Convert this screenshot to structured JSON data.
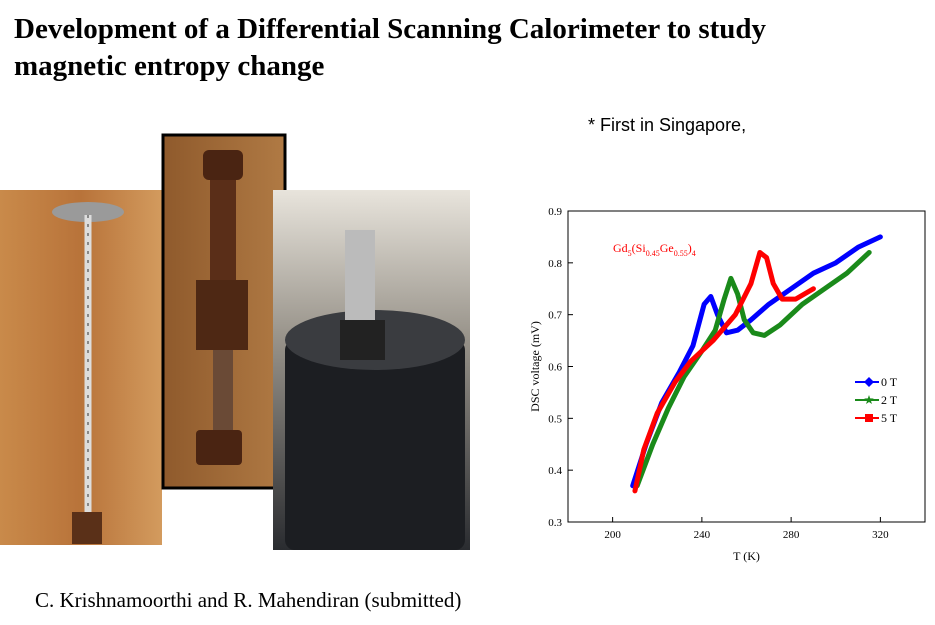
{
  "header": {
    "title_lines": [
      "Development of a Differential Scanning Calorimeter to study",
      "magnetic entropy change"
    ]
  },
  "note": "* First in Singapore,",
  "citation": "C. Krishnamoorthi and R. Mahendiran (submitted)",
  "chart_data": {
    "type": "line",
    "annotation_parts": [
      "Gd",
      "5",
      "(Si",
      "0.45",
      "Ge",
      "0.55",
      ")",
      "4"
    ],
    "x_label": "T (K)",
    "y_label": "DSC voltage (mV)",
    "xlim": [
      180,
      340
    ],
    "xticks": [
      200,
      240,
      280,
      320
    ],
    "ylim": [
      0.3,
      0.9
    ],
    "yticks": [
      0.3,
      0.4,
      0.5,
      0.6,
      0.7,
      0.8,
      0.9
    ],
    "legend": "right",
    "series": [
      {
        "name": "0 T",
        "color": "#0000ff",
        "marker": "diamond",
        "x": [
          209,
          215,
          222,
          230,
          236,
          241,
          244,
          247,
          251,
          256,
          262,
          270,
          280,
          290,
          300,
          310,
          320
        ],
        "values": [
          0.37,
          0.45,
          0.53,
          0.59,
          0.64,
          0.72,
          0.735,
          0.7,
          0.665,
          0.67,
          0.69,
          0.72,
          0.75,
          0.78,
          0.8,
          0.83,
          0.85
        ]
      },
      {
        "name": "2 T",
        "color": "#1a8a1a",
        "marker": "star",
        "x": [
          211,
          218,
          225,
          232,
          240,
          246,
          250,
          253,
          256,
          259,
          263,
          268,
          275,
          285,
          295,
          305,
          315
        ],
        "values": [
          0.37,
          0.45,
          0.52,
          0.58,
          0.63,
          0.67,
          0.73,
          0.77,
          0.74,
          0.69,
          0.665,
          0.66,
          0.68,
          0.72,
          0.75,
          0.78,
          0.82
        ]
      },
      {
        "name": "5 T",
        "color": "#ff0000",
        "marker": "square",
        "x": [
          210,
          214,
          220,
          228,
          235,
          245,
          255,
          262,
          266,
          269,
          272,
          276,
          282,
          290
        ],
        "values": [
          0.36,
          0.44,
          0.51,
          0.57,
          0.61,
          0.65,
          0.7,
          0.76,
          0.82,
          0.81,
          0.76,
          0.73,
          0.73,
          0.75
        ]
      }
    ]
  }
}
